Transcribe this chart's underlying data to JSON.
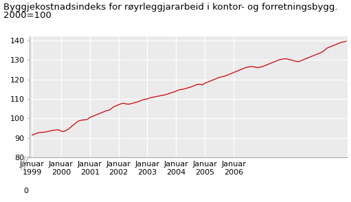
{
  "title_line1": "Byggjekostnadsindeks for røyrleggjararbeid i kontor- og forretningsbygg.",
  "title_line2": "2000=100",
  "line_color": "#cc0000",
  "bg_color": "#ffffff",
  "plot_bg_color": "#ebebeb",
  "grid_color": "#ffffff",
  "ylim": [
    80,
    142
  ],
  "yticks": [
    80,
    90,
    100,
    110,
    120,
    130,
    140
  ],
  "y0_label": "0",
  "title_fontsize": 9.5,
  "tick_fontsize": 8,
  "values": [
    91.5,
    92.0,
    92.5,
    92.8,
    92.9,
    93.0,
    93.2,
    93.5,
    93.7,
    94.0,
    94.1,
    94.2,
    93.5,
    93.3,
    93.8,
    94.5,
    95.5,
    96.5,
    97.5,
    98.5,
    99.0,
    99.2,
    99.3,
    99.5,
    100.5,
    101.0,
    101.5,
    102.0,
    102.5,
    103.0,
    103.5,
    104.0,
    104.2,
    105.0,
    106.0,
    106.5,
    107.0,
    107.5,
    107.8,
    107.5,
    107.3,
    107.5,
    107.8,
    108.2,
    108.5,
    109.0,
    109.5,
    109.8,
    110.0,
    110.5,
    110.8,
    111.0,
    111.3,
    111.5,
    111.8,
    112.0,
    112.3,
    112.7,
    113.2,
    113.5,
    114.0,
    114.5,
    114.8,
    115.0,
    115.3,
    115.7,
    116.0,
    116.5,
    117.0,
    117.5,
    117.5,
    117.2,
    118.0,
    118.5,
    119.0,
    119.5,
    120.0,
    120.5,
    121.0,
    121.3,
    121.5,
    122.0,
    122.5,
    123.0,
    123.5,
    124.0,
    124.5,
    125.0,
    125.5,
    126.0,
    126.3,
    126.5,
    126.5,
    126.3,
    126.0,
    126.2,
    126.5,
    127.0,
    127.5,
    128.0,
    128.5,
    129.0,
    129.5,
    130.0,
    130.2,
    130.5,
    130.5,
    130.2,
    130.0,
    129.5,
    129.3,
    129.0,
    129.5,
    130.0,
    130.5,
    131.0,
    131.5,
    132.0,
    132.5,
    133.0,
    133.5,
    134.0,
    135.0,
    136.0,
    136.5,
    137.0,
    137.5,
    138.0,
    138.5,
    139.0,
    139.2,
    139.5
  ],
  "xtick_positions": [
    0,
    12,
    24,
    36,
    48,
    60,
    72,
    84
  ],
  "xtick_labels": [
    "Januar\n1999",
    "Januar\n2000",
    "Januar\n2001",
    "Januar\n2002",
    "Januar\n2003",
    "Januar\n2004",
    "Januar\n2005",
    "Januar\n2006"
  ]
}
